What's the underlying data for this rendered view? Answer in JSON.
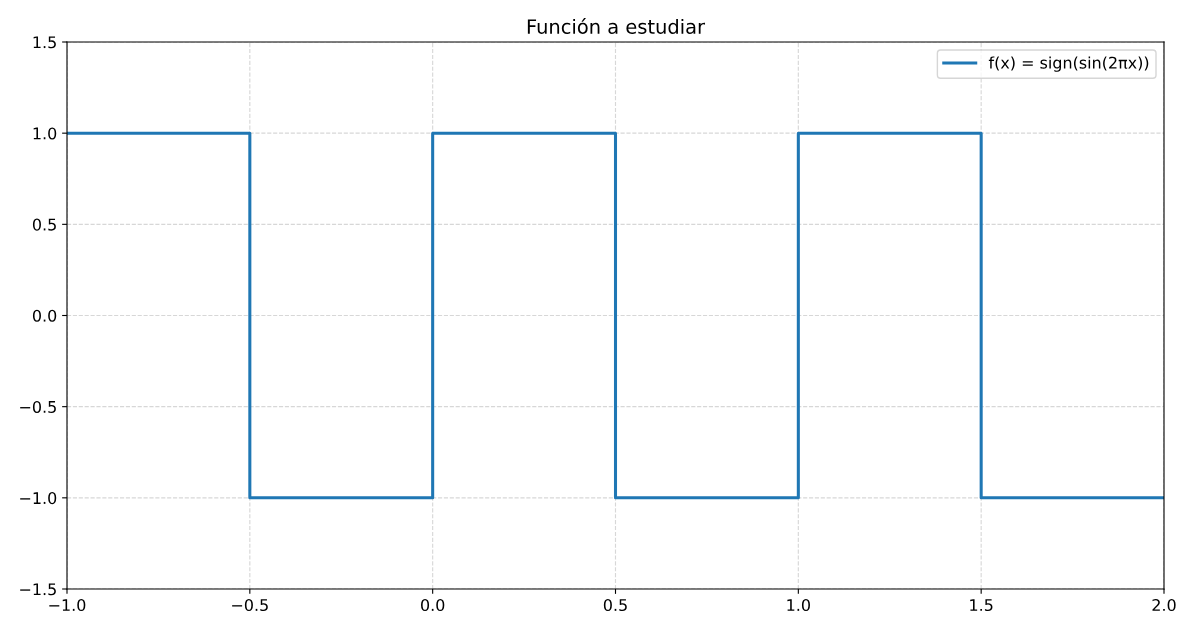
{
  "chart_data": {
    "type": "step",
    "title": "Función a estudiar",
    "x": [
      -1.0,
      -0.5,
      0.0,
      0.5,
      1.0,
      1.5,
      2.0
    ],
    "series": [
      {
        "name": "f(x) = sign(sin(2πx))",
        "color": "#1f77b4",
        "values": [
          1,
          -1,
          1,
          -1,
          1,
          -1,
          -1
        ]
      }
    ],
    "xlim": [
      -1.0,
      2.0
    ],
    "xticks": [
      {
        "value": -1.0,
        "label": "−1.0"
      },
      {
        "value": -0.5,
        "label": "−0.5"
      },
      {
        "value": 0.0,
        "label": "0.0"
      },
      {
        "value": 0.5,
        "label": "0.5"
      },
      {
        "value": 1.0,
        "label": "1.0"
      },
      {
        "value": 1.5,
        "label": "1.5"
      },
      {
        "value": 2.0,
        "label": "2.0"
      }
    ],
    "ylim": [
      -1.5,
      1.5
    ],
    "yticks": [
      {
        "value": -1.5,
        "label": "−1.5"
      },
      {
        "value": -1.0,
        "label": "−1.0"
      },
      {
        "value": -0.5,
        "label": "−0.5"
      },
      {
        "value": 0.0,
        "label": "0.0"
      },
      {
        "value": 0.5,
        "label": "0.5"
      },
      {
        "value": 1.0,
        "label": "1.0"
      },
      {
        "value": 1.5,
        "label": "1.5"
      }
    ],
    "grid": true,
    "legend": "top right"
  }
}
